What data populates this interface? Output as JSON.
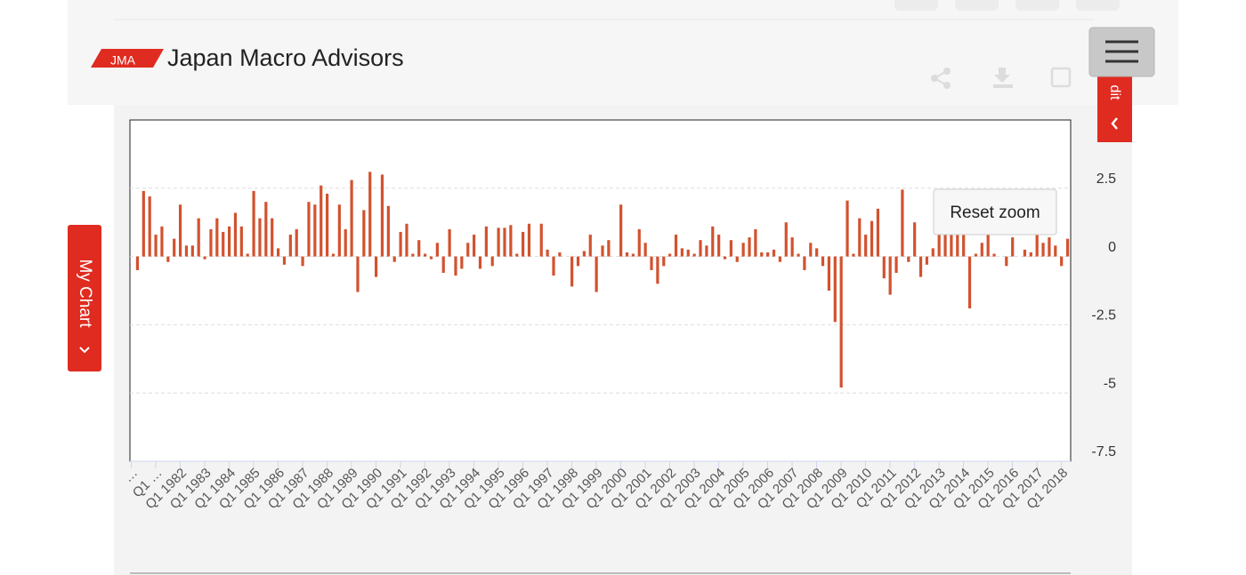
{
  "header": {
    "logo": "JMA",
    "brand": "Japan Macro Advisors"
  },
  "side_tab": "My Chart",
  "edit_tab": "dit",
  "reset_zoom": "Reset zoom",
  "chart_data": {
    "type": "bar",
    "color": "#d2522f",
    "categories": [
      "…",
      null,
      null,
      null,
      "Q1 …",
      null,
      null,
      null,
      "Q1 1982",
      null,
      null,
      null,
      "Q1 1983",
      null,
      null,
      null,
      "Q1 1984",
      null,
      null,
      null,
      "Q1 1985",
      null,
      null,
      null,
      "Q1 1986",
      null,
      null,
      null,
      "Q1 1987",
      null,
      null,
      null,
      "Q1 1988",
      null,
      null,
      null,
      "Q1 1989",
      null,
      null,
      null,
      "Q1 1990",
      null,
      null,
      null,
      "Q1 1991",
      null,
      null,
      null,
      "Q1 1992",
      null,
      null,
      null,
      "Q1 1993",
      null,
      null,
      null,
      "Q1 1994",
      null,
      null,
      null,
      "Q1 1995",
      null,
      null,
      null,
      "Q1 1996",
      null,
      null,
      null,
      "Q1 1997",
      null,
      null,
      null,
      "Q1 1998",
      null,
      null,
      null,
      "Q1 1999",
      null,
      null,
      null,
      "Q1 2000",
      null,
      null,
      null,
      "Q1 2001",
      null,
      null,
      null,
      "Q1 2002",
      null,
      null,
      null,
      "Q1 2003",
      null,
      null,
      null,
      "Q1 2004",
      null,
      null,
      null,
      "Q1 2005",
      null,
      null,
      null,
      "Q1 2006",
      null,
      null,
      null,
      "Q1 2007",
      null,
      null,
      null,
      "Q1 2008",
      null,
      null,
      null,
      "Q1 2009",
      null,
      null,
      null,
      "Q1 2010",
      null,
      null,
      null,
      "Q1 2011",
      null,
      null,
      null,
      "Q1 2012",
      null,
      null,
      null,
      "Q1 2013",
      null,
      null,
      null,
      "Q1 2014",
      null,
      null,
      null,
      "Q1 2015",
      null,
      null,
      null,
      "Q1 2016",
      null,
      null,
      null,
      "Q1 2017",
      null,
      null,
      null,
      "Q1 2018"
    ],
    "values": [
      -0.5,
      2.4,
      2.2,
      0.8,
      1.1,
      -0.2,
      0.65,
      1.9,
      0.4,
      0.4,
      1.4,
      -0.1,
      1.0,
      1.4,
      0.9,
      1.1,
      1.6,
      1.1,
      0.1,
      2.4,
      1.4,
      2.0,
      1.4,
      0.3,
      -0.3,
      0.8,
      1.0,
      -0.35,
      2.0,
      1.9,
      2.6,
      2.3,
      0.1,
      1.9,
      1.0,
      2.8,
      -1.3,
      1.7,
      3.1,
      -0.75,
      3.0,
      1.85,
      -0.2,
      0.9,
      1.2,
      0.1,
      0.6,
      0.1,
      -0.1,
      0.5,
      -0.6,
      1.0,
      -0.7,
      -0.45,
      0.5,
      0.8,
      -0.45,
      1.1,
      -0.35,
      1.05,
      1.05,
      1.15,
      0.1,
      0.9,
      1.2,
      0,
      1.2,
      0.25,
      -0.7,
      0.15,
      0,
      -1.1,
      -0.35,
      0.2,
      0.8,
      -1.3,
      0.4,
      0.6,
      0,
      1.9,
      0.15,
      0.1,
      1.0,
      0.5,
      -0.5,
      -1.0,
      -0.35,
      0.1,
      0.8,
      0.3,
      0.25,
      0.1,
      0.6,
      0.4,
      1.1,
      0.8,
      -0.1,
      0.6,
      -0.2,
      0.5,
      0.7,
      1.0,
      0.15,
      0.15,
      0.25,
      -0.2,
      1.25,
      0.7,
      0.1,
      -0.5,
      0.5,
      0.3,
      -0.35,
      -1.25,
      -2.4,
      -4.8,
      2.05,
      0.1,
      1.4,
      0.8,
      1.3,
      1.75,
      -0.8,
      -1.4,
      -0.6,
      2.45,
      -0.2,
      1.25,
      -0.75,
      -0.3,
      0.3,
      0.8,
      0.9,
      0.9,
      0.9,
      0.8,
      -1.9,
      0.1,
      0.5,
      0.8,
      0.1,
      0,
      -0.35,
      0.7,
      0,
      0.25,
      0.15,
      0.8,
      0.5,
      0.7,
      0.4,
      -0.35,
      0.65
    ],
    "ylim": [
      -7.5,
      5
    ],
    "yticks": [
      -7.5,
      -5,
      -2.5,
      0,
      2.5
    ],
    "grid": true
  }
}
